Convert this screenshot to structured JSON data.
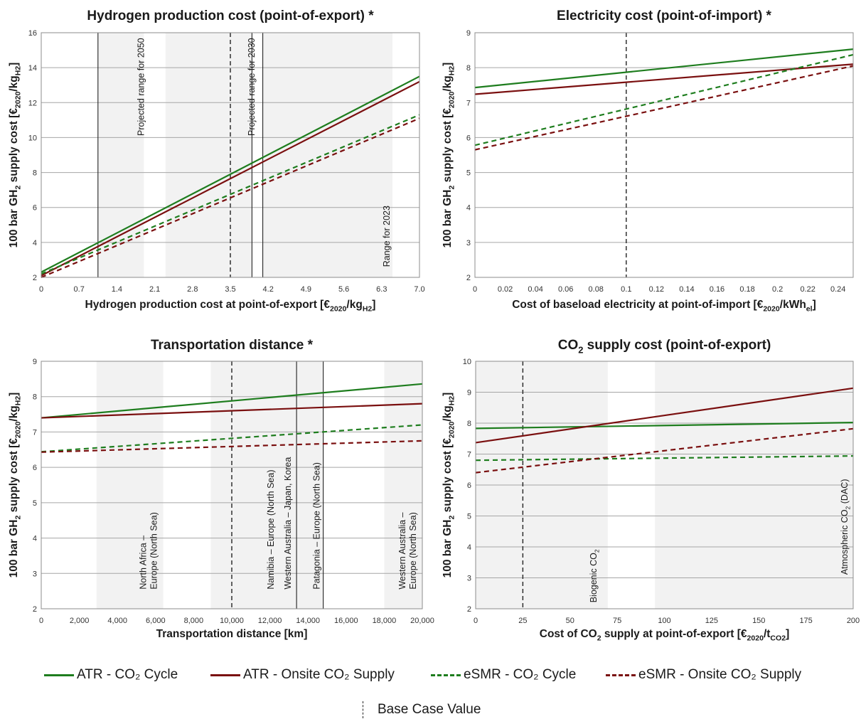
{
  "colors": {
    "atr": "#1e7d1e",
    "esmr": "#7a0f0f",
    "shade": "#f2f2f2",
    "grid": "#a6a6a6"
  },
  "legend": {
    "items": [
      {
        "label": "ATR - CO₂ Cycle",
        "color": "#1e7d1e",
        "dash": "solid"
      },
      {
        "label": "ATR - Onsite CO₂ Supply",
        "color": "#7a0f0f",
        "dash": "solid"
      },
      {
        "label": "eSMR - CO₂ Cycle",
        "color": "#1e7d1e",
        "dash": "dashed"
      },
      {
        "label": "eSMR - Onsite CO₂ Supply",
        "color": "#7a0f0f",
        "dash": "dashed"
      }
    ],
    "base_case": "Base Case Value"
  },
  "chart_data": [
    {
      "type": "line",
      "title": "Hydrogen production cost (point-of-export) *",
      "xlabel": "Hydrogen production cost at point-of-export [€2020/kgH2]",
      "ylabel": "100 bar GH2 supply cost [€2020/kgH2]",
      "xlim": [
        0,
        7.0
      ],
      "ylim": [
        2,
        16
      ],
      "xticks": [
        "0",
        "0.7",
        "1.4",
        "2.1",
        "2.8",
        "3.5",
        "4.2",
        "4.9",
        "5.6",
        "6.3",
        "7.0"
      ],
      "yticks": [
        "2",
        "4",
        "6",
        "8",
        "10",
        "12",
        "14",
        "16"
      ],
      "base_case_x": 3.5,
      "shaded_ranges": [
        [
          1.05,
          1.9
        ],
        [
          2.3,
          3.9
        ],
        [
          4.1,
          6.5
        ]
      ],
      "annotations": [
        "Projected range for 2050",
        "Projected range for 2030",
        "Range for 2023"
      ],
      "series": [
        {
          "name": "ATR - CO2 Cycle",
          "x": [
            0,
            7.0
          ],
          "y": [
            2.3,
            13.5
          ]
        },
        {
          "name": "ATR - Onsite CO2 Supply",
          "x": [
            0,
            7.0
          ],
          "y": [
            2.1,
            13.2
          ]
        },
        {
          "name": "eSMR - CO2 Cycle",
          "x": [
            0,
            7.0
          ],
          "y": [
            2.2,
            11.3
          ]
        },
        {
          "name": "eSMR - Onsite CO2 Supply",
          "x": [
            0,
            7.0
          ],
          "y": [
            2.0,
            11.1
          ]
        }
      ]
    },
    {
      "type": "line",
      "title": "Electricity cost (point-of-import) *",
      "xlabel": "Cost of baseload electricity at point-of-import [€2020/kWhel]",
      "ylabel": "100 bar GH2 supply cost [€2020/kgH2]",
      "xlim": [
        0,
        0.25
      ],
      "ylim": [
        2,
        9
      ],
      "xticks": [
        "0",
        "0.02",
        "0.04",
        "0.06",
        "0.08",
        "0.1",
        "0.12",
        "0.14",
        "0.16",
        "0.18",
        "0.2",
        "0.22",
        "0.24"
      ],
      "yticks": [
        "2",
        "3",
        "4",
        "5",
        "6",
        "7",
        "8",
        "9"
      ],
      "base_case_x": 0.1,
      "series": [
        {
          "name": "ATR - CO2 Cycle",
          "x": [
            0,
            0.25
          ],
          "y": [
            7.43,
            8.53
          ]
        },
        {
          "name": "ATR - Onsite CO2 Supply",
          "x": [
            0,
            0.25
          ],
          "y": [
            7.24,
            8.1
          ]
        },
        {
          "name": "eSMR - CO2 Cycle",
          "x": [
            0,
            0.25
          ],
          "y": [
            5.78,
            8.37
          ]
        },
        {
          "name": "eSMR - Onsite CO2 Supply",
          "x": [
            0,
            0.25
          ],
          "y": [
            5.65,
            8.05
          ]
        }
      ]
    },
    {
      "type": "line",
      "title": "Transportation distance *",
      "xlabel": "Transportation distance [km]",
      "ylabel": "100 bar GH2 supply cost [€2020/kgH2]",
      "xlim": [
        0,
        20000
      ],
      "ylim": [
        2,
        9
      ],
      "xticks": [
        "0",
        "2,000",
        "4,000",
        "6,000",
        "8,000",
        "10,000",
        "12,000",
        "14,000",
        "16,000",
        "18,000",
        "20,000"
      ],
      "yticks": [
        "2",
        "3",
        "4",
        "5",
        "6",
        "7",
        "8",
        "9"
      ],
      "base_case_x": 10000,
      "shaded_ranges": [
        [
          2900,
          6400
        ],
        [
          8900,
          13400
        ],
        [
          13400,
          14800
        ],
        [
          18000,
          20000
        ]
      ],
      "annotations": [
        "North Africa – Europe (North Sea)",
        "Namibia – Europe (North Sea)",
        "Western Australia – Japan, Korea",
        "Patagonia – Europe (North Sea)",
        "Western Australia – Europe (North Sea)"
      ],
      "series": [
        {
          "name": "ATR - CO2 Cycle",
          "x": [
            0,
            20000
          ],
          "y": [
            7.4,
            8.36
          ]
        },
        {
          "name": "ATR - Onsite CO2 Supply",
          "x": [
            0,
            20000
          ],
          "y": [
            7.4,
            7.8
          ]
        },
        {
          "name": "eSMR - CO2 Cycle",
          "x": [
            0,
            20000
          ],
          "y": [
            6.44,
            7.2
          ]
        },
        {
          "name": "eSMR - Onsite CO2 Supply",
          "x": [
            0,
            20000
          ],
          "y": [
            6.43,
            6.75
          ]
        }
      ]
    },
    {
      "type": "line",
      "title": "CO2 supply cost (point-of-export)",
      "xlabel": "Cost of CO2 supply at point-of-export [€2020/tCO2]",
      "ylabel": "100 bar GH2 supply cost [€2020/kgH2]",
      "xlim": [
        0,
        200
      ],
      "ylim": [
        2,
        10
      ],
      "xticks": [
        "0",
        "25",
        "50",
        "75",
        "100",
        "125",
        "150",
        "175",
        "200"
      ],
      "yticks": [
        "2",
        "3",
        "4",
        "5",
        "6",
        "7",
        "8",
        "9",
        "10"
      ],
      "base_case_x": 25,
      "shaded_ranges": [
        [
          0,
          70
        ],
        [
          95,
          200
        ]
      ],
      "annotations": [
        "Biogenic CO2",
        "Atmospheric CO2 (DAC)"
      ],
      "series": [
        {
          "name": "ATR - CO2 Cycle",
          "x": [
            0,
            200
          ],
          "y": [
            7.83,
            8.02
          ]
        },
        {
          "name": "ATR - Onsite CO2 Supply",
          "x": [
            0,
            200
          ],
          "y": [
            7.37,
            9.13
          ]
        },
        {
          "name": "eSMR - CO2 Cycle",
          "x": [
            0,
            200
          ],
          "y": [
            6.8,
            6.94
          ]
        },
        {
          "name": "eSMR - Onsite CO2 Supply",
          "x": [
            0,
            200
          ],
          "y": [
            6.4,
            7.82
          ]
        }
      ]
    }
  ]
}
